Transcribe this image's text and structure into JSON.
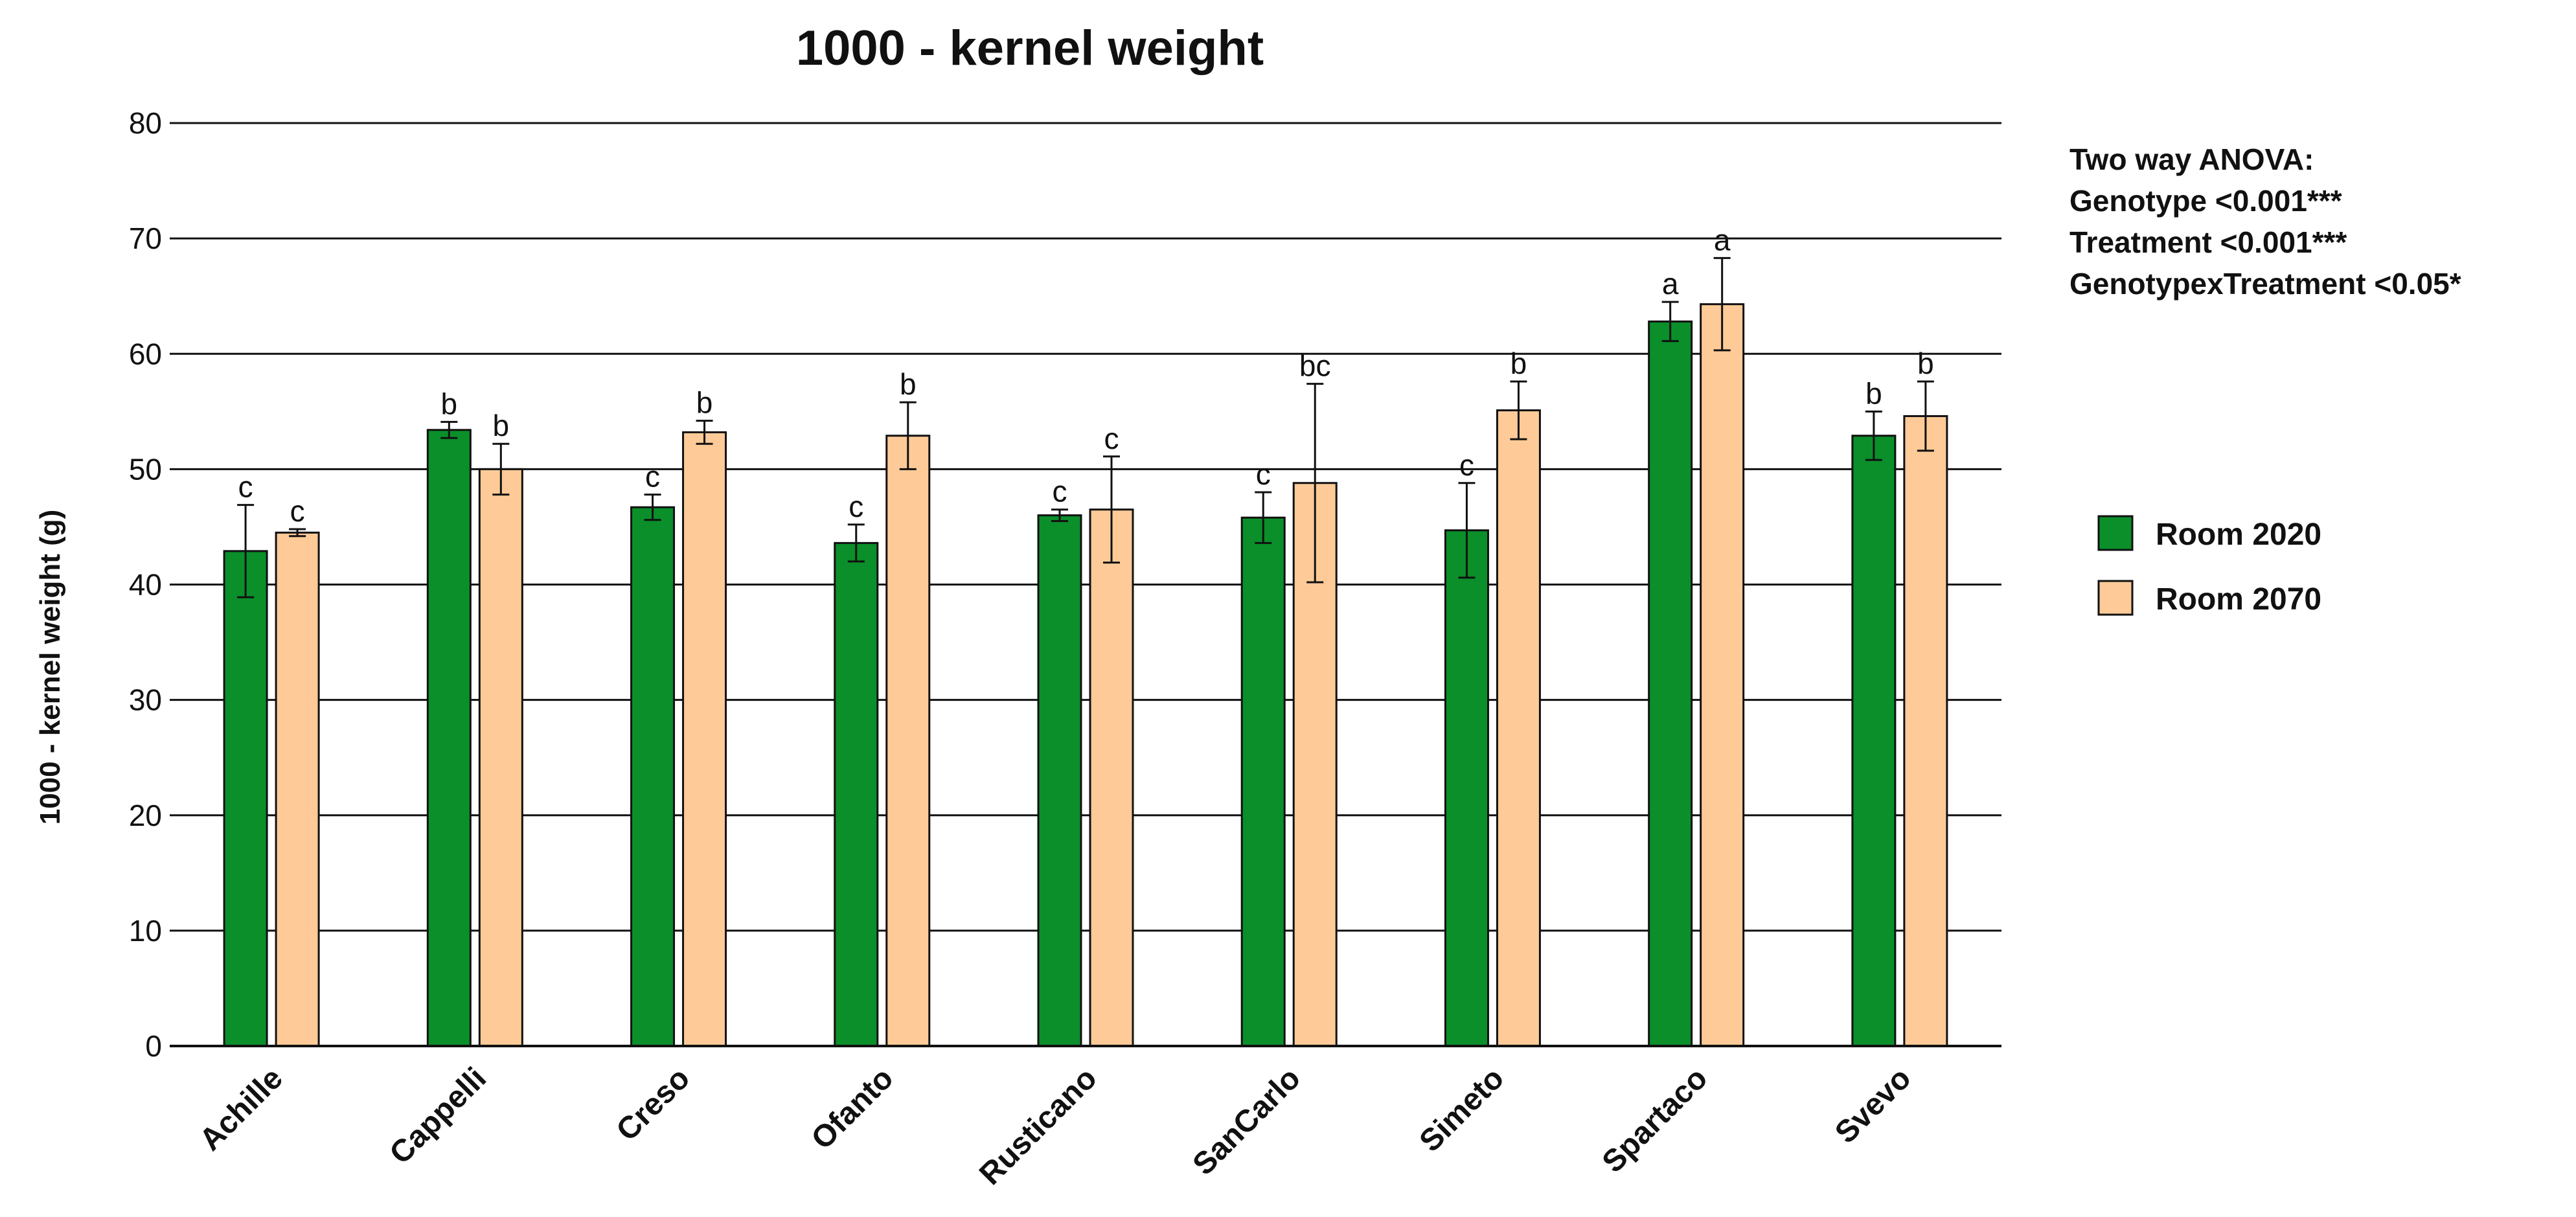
{
  "chart_data": {
    "type": "bar",
    "title": "1000 - kernel weight",
    "xlabel": "",
    "ylabel": "1000 - kernel weight (g)",
    "ylim": [
      0,
      80
    ],
    "yticks": [
      0,
      10,
      20,
      30,
      40,
      50,
      60,
      70,
      80
    ],
    "grid": true,
    "legend_position": "right",
    "categories": [
      "Achille",
      "Cappelli",
      "Creso",
      "Ofanto",
      "Rusticano",
      "SanCarlo",
      "Simeto",
      "Spartaco",
      "Svevo"
    ],
    "series": [
      {
        "name": "Room 2020",
        "color": "#0a8f2a",
        "values": [
          42.9,
          53.4,
          46.7,
          43.6,
          46.0,
          45.8,
          44.7,
          62.8,
          52.9
        ],
        "errors": [
          4.0,
          0.7,
          1.1,
          1.6,
          0.5,
          2.2,
          4.1,
          1.7,
          2.1
        ],
        "labels": [
          "c",
          "b",
          "c",
          "c",
          "c",
          "c",
          "c",
          "a",
          "b"
        ]
      },
      {
        "name": "Room 2070",
        "color": "#fecb98",
        "values": [
          44.5,
          50.0,
          53.2,
          52.9,
          46.5,
          48.8,
          55.1,
          64.3,
          54.6
        ],
        "errors": [
          0.3,
          2.2,
          1.0,
          2.9,
          4.6,
          8.6,
          2.5,
          4.0,
          3.0
        ],
        "labels": [
          "c",
          "b",
          "b",
          "b",
          "c",
          "bc",
          "b",
          "a",
          "b"
        ]
      }
    ],
    "annotation": [
      "Two way ANOVA:",
      "Genotype <0.001***",
      "Treatment <0.001***",
      "GenotypexTreatment <0.05*"
    ]
  }
}
